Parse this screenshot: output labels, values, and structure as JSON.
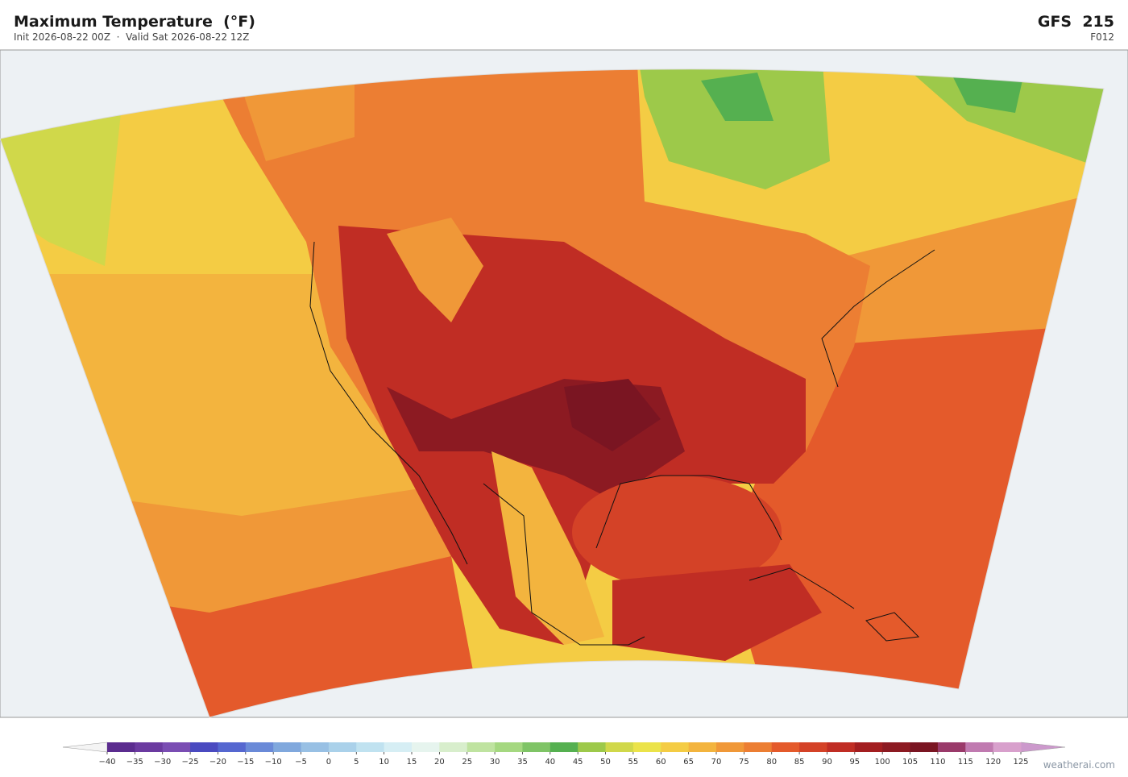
{
  "header": {
    "title": "Maximum Temperature  (°F)",
    "subtitle": "Init 2026-08-22 00Z  ·  Valid Sat 2026-08-22 12Z",
    "model": "GFS  215",
    "forecast_hour": "F012"
  },
  "colorbar": {
    "ticks": [
      {
        "value": -40,
        "label": "−40"
      },
      {
        "value": -35,
        "label": "−35"
      },
      {
        "value": -30,
        "label": "−30"
      },
      {
        "value": -25,
        "label": "−25"
      },
      {
        "value": -20,
        "label": "−20"
      },
      {
        "value": -15,
        "label": "−15"
      },
      {
        "value": -10,
        "label": "−10"
      },
      {
        "value": -5,
        "label": "−5"
      },
      0,
      5,
      10,
      15,
      20,
      25,
      30,
      35,
      40,
      45,
      50,
      55,
      60,
      65,
      70,
      75,
      80,
      85,
      90,
      95,
      100,
      105,
      110,
      115,
      120,
      125
    ],
    "colors": [
      "#5b2c8f",
      "#6b3aa0",
      "#7a4db3",
      "#4a4ac0",
      "#5567d0",
      "#6a8ad8",
      "#80a8dd",
      "#98c0e4",
      "#aad1ea",
      "#c0e2f0",
      "#d6eef4",
      "#e6f4ee",
      "#d8eecc",
      "#bfe3a0",
      "#a5d880",
      "#7fc466",
      "#55b050",
      "#9dc94a",
      "#d0d84a",
      "#ebe34a",
      "#f4cc44",
      "#f3b43e",
      "#f09838",
      "#ec7e33",
      "#e45a2b",
      "#d44227",
      "#c02d24",
      "#a31e20",
      "#8c1a22",
      "#7a1522",
      "#9a3a6a",
      "#c07ab0",
      "#d8a0cc"
    ],
    "under_color": "#f4f4f4",
    "over_color": "#cc99cc"
  },
  "credit": "weatherai.com"
}
